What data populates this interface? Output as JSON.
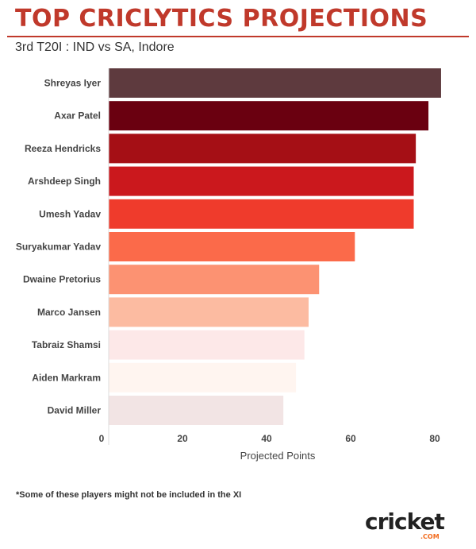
{
  "header": {
    "title": "TOP CRICLYTICS PROJECTIONS",
    "subtitle": "3rd T20I : IND vs SA, Indore"
  },
  "footnote": "*Some of these players might not be included in the XI",
  "logo": {
    "text": "cricket",
    "suffix": ".COM"
  },
  "chart_data": {
    "type": "bar",
    "orientation": "horizontal",
    "categories": [
      "Shreyas Iyer",
      "Axar Patel",
      "Reeza Hendricks",
      "Arshdeep Singh",
      "Umesh Yadav",
      "Suryakumar Yadav",
      "Dwaine Pretorius",
      "Marco Jansen",
      "Tabraiz Shamsi",
      "Aiden Markram",
      "David Miller"
    ],
    "values": [
      81.5,
      78.5,
      75.5,
      75,
      75,
      61,
      52.5,
      50,
      49,
      47,
      44
    ],
    "colors": [
      "#5e3a3e",
      "#6a0010",
      "#a50f15",
      "#cb181d",
      "#ef3b2c",
      "#fb6a4a",
      "#fc9272",
      "#fcbba1",
      "#fde8e8",
      "#fff5f0",
      "#f2e4e4"
    ],
    "xlabel": "Projected Points",
    "ylabel": "",
    "xticks": [
      "0",
      "20",
      "40",
      "60",
      "80"
    ],
    "xlim": [
      0,
      85
    ],
    "grid": false
  }
}
